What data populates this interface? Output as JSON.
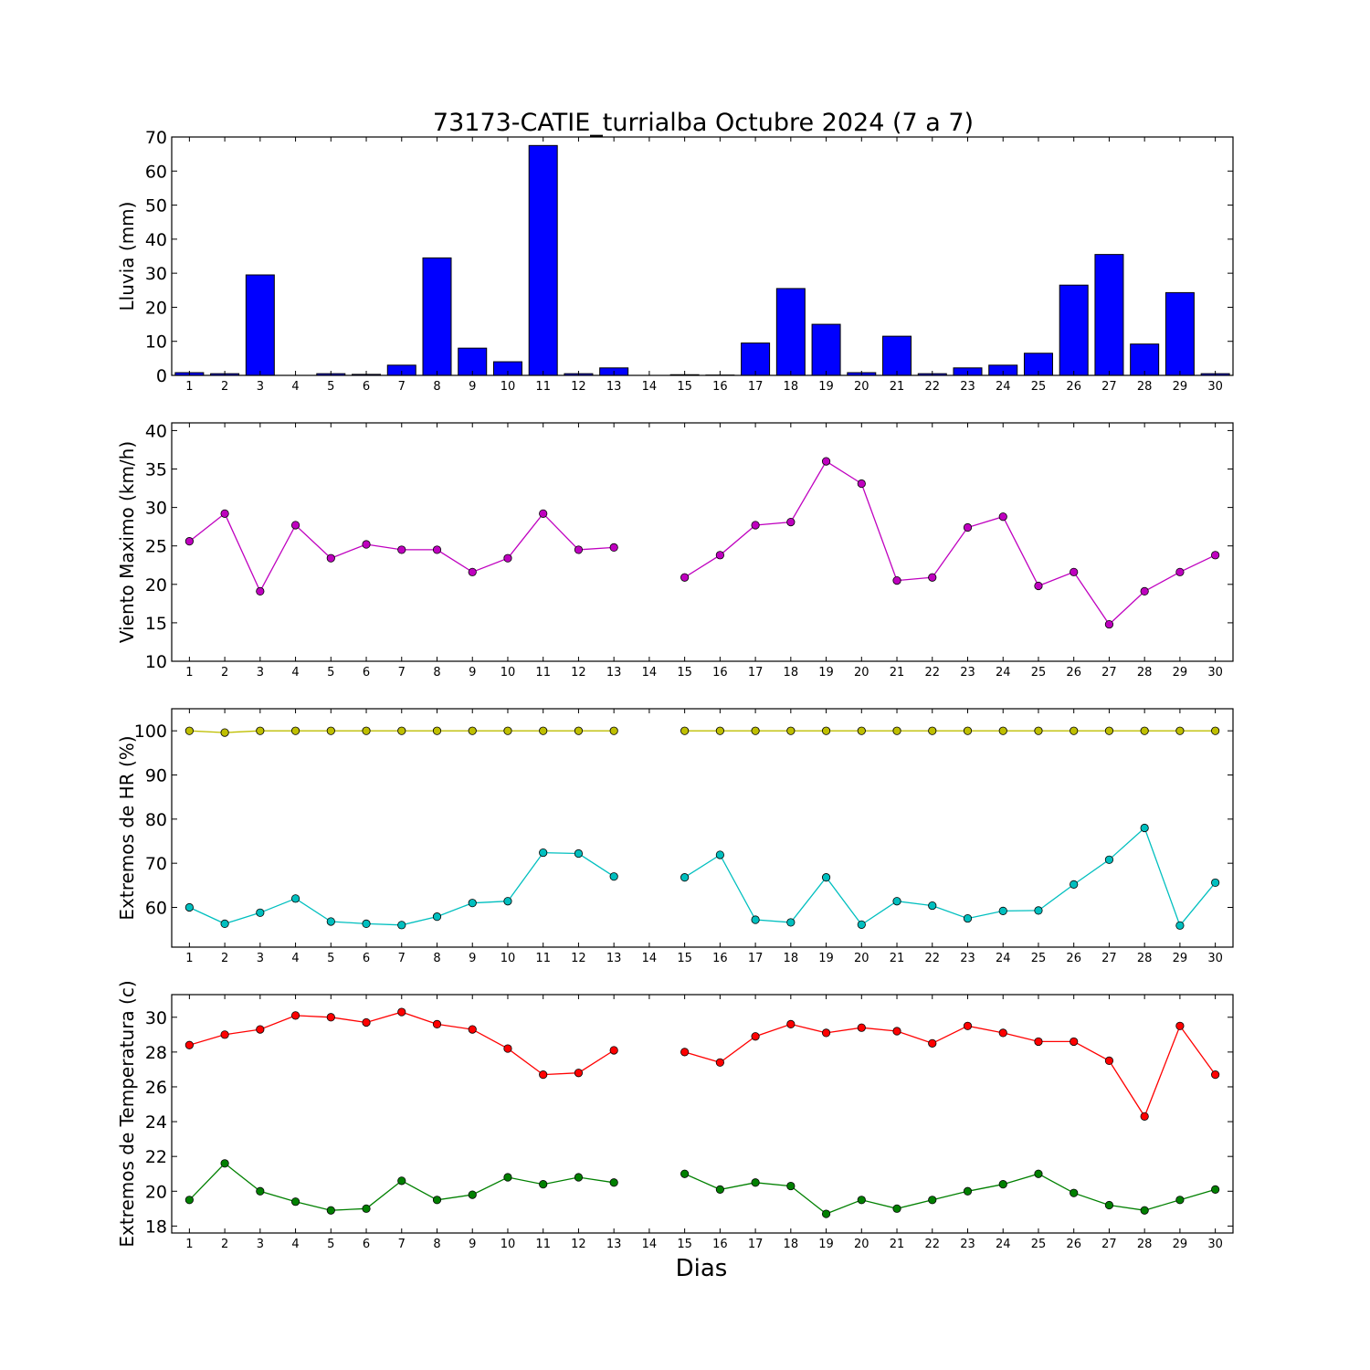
{
  "colors": {
    "rain": "#0000ff",
    "wind": "#bf00bf",
    "hr_max": "#bfbf00",
    "hr_min": "#00bfbf",
    "temp_max": "#ff0000",
    "temp_min": "#008000"
  },
  "chart_data": {
    "title": "73173-CATIE_turrialba Octubre 2024  (7 a 7)",
    "xlabel": "Dias",
    "days": [
      1,
      2,
      3,
      4,
      5,
      6,
      7,
      8,
      9,
      10,
      11,
      12,
      13,
      14,
      15,
      16,
      17,
      18,
      19,
      20,
      21,
      22,
      23,
      24,
      25,
      26,
      27,
      28,
      29,
      30
    ],
    "panels": [
      {
        "type": "bar",
        "ylabel": "Lluvia (mm)",
        "ylim": [
          0,
          70
        ],
        "yticks": [
          0,
          10,
          20,
          30,
          40,
          50,
          60,
          70
        ],
        "series": [
          {
            "color_key": "rain",
            "values": [
              0.8,
              0.5,
              29.5,
              0,
              0.5,
              0.3,
              3.0,
              34.5,
              8.0,
              4.0,
              67.5,
              0.5,
              2.2,
              0,
              0.2,
              0.1,
              9.5,
              25.5,
              15.0,
              0.8,
              11.5,
              0.5,
              2.2,
              3.0,
              6.5,
              26.5,
              35.5,
              9.2,
              24.3,
              0.5
            ]
          }
        ]
      },
      {
        "type": "line",
        "ylabel": "Viento Maximo (km/h)",
        "ylim": [
          10,
          41
        ],
        "yticks": [
          10,
          15,
          20,
          25,
          30,
          35,
          40
        ],
        "series": [
          {
            "color_key": "wind",
            "values": [
              25.6,
              29.2,
              19.1,
              27.7,
              23.4,
              25.2,
              24.5,
              24.5,
              21.6,
              23.4,
              29.2,
              24.5,
              24.8,
              null,
              20.9,
              23.8,
              27.7,
              28.1,
              36.0,
              33.1,
              20.5,
              20.9,
              27.4,
              28.8,
              19.8,
              21.6,
              14.8,
              19.1,
              21.6,
              23.8
            ]
          }
        ]
      },
      {
        "type": "line",
        "ylabel": "Extremos de HR (%)",
        "ylim": [
          51,
          105
        ],
        "yticks": [
          60,
          70,
          80,
          90,
          100
        ],
        "series": [
          {
            "color_key": "hr_max",
            "values": [
              100,
              99.6,
              100,
              100,
              100,
              100,
              100,
              100,
              100,
              100,
              100,
              100,
              100,
              null,
              100,
              100,
              100,
              100,
              100,
              100,
              100,
              100,
              100,
              100,
              100,
              100,
              100,
              100,
              100,
              100
            ]
          },
          {
            "color_key": "hr_min",
            "values": [
              60,
              56.3,
              58.8,
              62,
              56.8,
              56.3,
              56,
              57.9,
              61,
              61.4,
              72.4,
              72.2,
              67,
              null,
              66.8,
              71.9,
              57.2,
              56.6,
              66.8,
              56.1,
              61.4,
              60.4,
              57.5,
              59.2,
              59.3,
              65.2,
              70.8,
              78,
              55.9,
              65.6
            ]
          }
        ]
      },
      {
        "type": "line",
        "ylabel": "Extremos de Temperatura (c)",
        "ylim": [
          17.6,
          31.3
        ],
        "yticks": [
          18,
          20,
          22,
          24,
          26,
          28,
          30
        ],
        "series": [
          {
            "color_key": "temp_max",
            "values": [
              28.4,
              29.0,
              29.3,
              30.1,
              30.0,
              29.7,
              30.3,
              29.6,
              29.3,
              28.2,
              26.7,
              26.8,
              28.1,
              null,
              28.0,
              27.4,
              28.9,
              29.6,
              29.1,
              29.4,
              29.2,
              28.5,
              29.5,
              29.1,
              28.6,
              28.6,
              27.5,
              24.3,
              29.5,
              26.7
            ]
          },
          {
            "color_key": "temp_min",
            "values": [
              19.5,
              21.6,
              20.0,
              19.4,
              18.9,
              19.0,
              20.6,
              19.5,
              19.8,
              20.8,
              20.4,
              20.8,
              20.5,
              null,
              21.0,
              20.1,
              20.5,
              20.3,
              18.7,
              19.5,
              19.0,
              19.5,
              20.0,
              20.4,
              21.0,
              19.9,
              19.2,
              18.9,
              19.5,
              20.1
            ]
          }
        ]
      }
    ]
  }
}
